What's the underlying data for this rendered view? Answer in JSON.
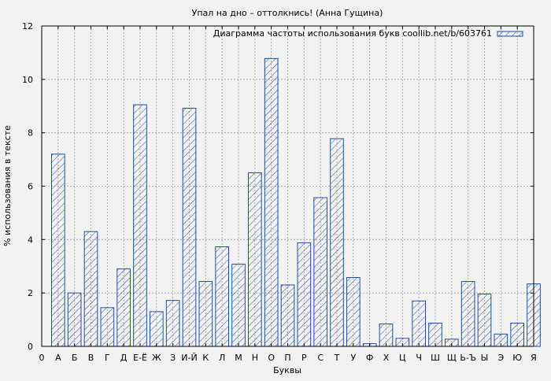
{
  "chart_data": {
    "type": "bar",
    "title": "Упал на дно – оттолкнись! (Анна Гущина)",
    "xlabel": "Буквы",
    "ylabel": "% использования в тексте",
    "legend": {
      "label": "Диаграмма частоты использования букв coollib.net/b/603761",
      "position": "top-right"
    },
    "ylim": [
      0,
      12
    ],
    "yticks": [
      0,
      2,
      4,
      6,
      8,
      10,
      12
    ],
    "x_tick_labels": [
      "0",
      "А",
      "Б",
      "В",
      "Г",
      "Д",
      "Е-Ё",
      "Ж",
      "З",
      "И-Й",
      "К",
      "Л",
      "М",
      "Н",
      "О",
      "П",
      "Р",
      "С",
      "Т",
      "У",
      "Ф",
      "Х",
      "Ц",
      "Ч",
      "Ш",
      "Щ",
      "Ь-Ъ",
      "Ы",
      "Э",
      "Ю",
      "Я"
    ],
    "categories": [
      "А",
      "Б",
      "В",
      "Г",
      "Д",
      "Е-Ё",
      "Ж",
      "З",
      "И-Й",
      "К",
      "Л",
      "М",
      "Н",
      "О",
      "П",
      "Р",
      "С",
      "Т",
      "У",
      "Ф",
      "Х",
      "Ц",
      "Ч",
      "Ш",
      "Щ",
      "Ь-Ъ",
      "Ы",
      "Э",
      "Ю",
      "Я"
    ],
    "values": [
      7.2,
      2.0,
      4.3,
      1.45,
      2.9,
      9.05,
      1.3,
      1.72,
      8.92,
      2.43,
      3.73,
      3.08,
      6.5,
      10.78,
      2.3,
      3.88,
      5.57,
      7.78,
      2.58,
      0.1,
      0.84,
      0.3,
      1.7,
      0.87,
      0.27,
      2.43,
      1.96,
      0.46,
      0.87,
      2.34
    ],
    "grid": true,
    "colors": {
      "bar_stroke": "#1f4fa0",
      "background": "#f2f2f2",
      "grid": "#9a9a9a"
    }
  }
}
